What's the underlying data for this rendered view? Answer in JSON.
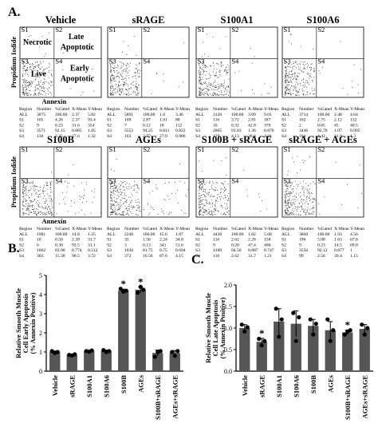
{
  "panel_letters": {
    "a": "A.",
    "b": "B.",
    "c": "C."
  },
  "scatter": {
    "y_axis_label": "Propidium Iodide",
    "x_axis_label": "Annexin",
    "quadrant_codes": [
      "S1",
      "S2",
      "S3",
      "S4"
    ],
    "quadrant_names": [
      "Necrotic",
      "Late Apoptotic",
      "Live",
      "Early Apoptotic"
    ],
    "table_header": [
      "Region",
      "Number",
      "%Gated",
      "X-Mean",
      "Y-Mean"
    ],
    "panels": [
      {
        "title": "Vehicle",
        "rows": [
          [
            "ALL",
            "3875",
            "100.00",
            "2.37",
            "5.82"
          ],
          [
            "S1",
            "165",
            "4.26",
            "2.37",
            "93.4"
          ],
          [
            "S2",
            "9",
            "0.23",
            "31.6",
            "354"
          ],
          [
            "S3",
            "3571",
            "92.15",
            "0.885",
            "1.05"
          ],
          [
            "S4",
            "130",
            "3.35",
            "27.6",
            "1.32"
          ]
        ]
      },
      {
        "title": "sRAGE",
        "rows": [
          [
            "ALL",
            "5891",
            "100.00",
            "1.6",
            "3.46"
          ],
          [
            "S1",
            "169",
            "2.87",
            "1.61",
            "88"
          ],
          [
            "S2",
            "7",
            "0.12",
            "18",
            "112"
          ],
          [
            "S3",
            "5552",
            "94.25",
            "0.811",
            "0.822"
          ],
          [
            "S4",
            "163",
            "2.77",
            "27.9",
            "0.986"
          ]
        ]
      },
      {
        "title": "S100A1",
        "rows": [
          [
            "ALL",
            "3120",
            "100.00",
            "3.09",
            "9.01"
          ],
          [
            "S1",
            "116",
            "3.72",
            "2.81",
            "187"
          ],
          [
            "S2",
            "10",
            "0.32",
            "42.8",
            "379"
          ],
          [
            "S3",
            "2865",
            "91.83",
            "1.36",
            "0.876"
          ],
          [
            "S4",
            "129",
            "4.13",
            "38.6",
            "1.21"
          ]
        ]
      },
      {
        "title": "S100A6",
        "rows": [
          [
            "ALL",
            "3714",
            "100.00",
            "2.48",
            "4.64"
          ],
          [
            "S1",
            "102",
            "2.75",
            "2.12",
            "132"
          ],
          [
            "S2",
            "2",
            "0.05",
            "45",
            "40.5"
          ],
          [
            "S3",
            "3446",
            "92.78",
            "1.07",
            "0.995"
          ],
          [
            "S4",
            "164",
            "4.42",
            "31.9",
            "1.3"
          ]
        ]
      },
      {
        "title": "S100B",
        "rows": [
          [
            "ALL",
            "1981",
            "100.00",
            "14.8",
            "1.25"
          ],
          [
            "S1",
            "10",
            "0.50",
            "2.39",
            "31.7"
          ],
          [
            "S2",
            "6",
            "0.30",
            "93.5",
            "31.1"
          ],
          [
            "S3",
            "1662",
            "83.90",
            "0.774",
            "0.512"
          ],
          [
            "S4",
            "303",
            "15.30",
            "90.5",
            "3.72"
          ]
        ]
      },
      {
        "title": "AGEs",
        "rows": [
          [
            "ALL",
            "2246",
            "100.00",
            "15.6",
            "1.87"
          ],
          [
            "S1",
            "35",
            "1.56",
            "2.24",
            "34.8"
          ],
          [
            "S2",
            "3",
            "0.13",
            "341",
            "51.6"
          ],
          [
            "S3",
            "1836",
            "81.75",
            "0.75",
            "0.694"
          ],
          [
            "S4",
            "372",
            "16.56",
            "87.6",
            "4.15"
          ]
        ]
      },
      {
        "title": "S100B + sRAGE",
        "rows": [
          [
            "ALL",
            "4430",
            "100.00",
            "1.82",
            "5.68"
          ],
          [
            "S1",
            "116",
            "2.62",
            "2.26",
            "158"
          ],
          [
            "S2",
            "9",
            "0.20",
            "47.4",
            "400"
          ],
          [
            "S3",
            "4189",
            "94.56",
            "0.887",
            "0.747"
          ],
          [
            "S4",
            "116",
            "2.62",
            "31.7",
            "1.21"
          ]
        ]
      },
      {
        "title": "sRAGE + AGEs",
        "rows": [
          [
            "ALL",
            "3860",
            "100.00",
            "1.93",
            "4.56"
          ],
          [
            "S1",
            "196",
            "5.08",
            "1.63",
            "67.8"
          ],
          [
            "S2",
            "9",
            "0.23",
            "14.5",
            "69.8"
          ],
          [
            "S3",
            "3556",
            "92.12",
            "0.877",
            "1"
          ],
          [
            "S4",
            "99",
            "2.56",
            "39.4",
            "1.15"
          ]
        ]
      }
    ]
  },
  "chart_data": [
    {
      "type": "bar",
      "panel": "B.",
      "ylabel": "Relative Smooth Muscle Cell Early Apoptosis (% Annexin Positive)",
      "ylim": [
        0,
        5
      ],
      "yticks": [
        0,
        1,
        2,
        3,
        4,
        5
      ],
      "categories": [
        "Vehicle",
        "sRAGE",
        "S100A1",
        "S100A6",
        "S100B",
        "AGEs",
        "S100B+sRAGE",
        "AGEs+sRAGE"
      ],
      "values": [
        1.0,
        0.85,
        1.05,
        1.05,
        4.2,
        4.25,
        0.95,
        0.95
      ],
      "errors": [
        0.05,
        0.04,
        0.04,
        0.05,
        0.08,
        0.15,
        0.15,
        0.12
      ],
      "points": [
        [
          1.05,
          0.95,
          1.0
        ],
        [
          0.85,
          0.82,
          0.88
        ],
        [
          1.05,
          1.02,
          1.08
        ],
        [
          1.1,
          1.0,
          1.05
        ],
        [
          4.3,
          4.15,
          4.2
        ],
        [
          4.1,
          4.4,
          4.25
        ],
        [
          0.75,
          1.0,
          1.05
        ],
        [
          1.0,
          0.8,
          1.05
        ]
      ],
      "significance": [
        "",
        "",
        "",
        "",
        "*",
        "*",
        "",
        ""
      ],
      "bar_color": "#555555"
    },
    {
      "type": "bar",
      "panel": "C.",
      "ylabel": "Relative Smooth Muscle Cell Late Apoptosis (% Annexin Positive)",
      "ylim": [
        0,
        2.0
      ],
      "yticks": [
        0.0,
        0.5,
        1.0,
        1.5,
        2.0
      ],
      "categories": [
        "Vehicle",
        "sRAGE",
        "S100A1",
        "S100A6",
        "S100B",
        "AGEs",
        "S100B+sRAGE",
        "AGEs+sRAGE"
      ],
      "values": [
        1.0,
        0.68,
        1.15,
        1.1,
        1.05,
        0.95,
        0.9,
        0.98
      ],
      "errors": [
        0.08,
        0.08,
        0.3,
        0.3,
        0.15,
        0.2,
        0.05,
        0.1
      ],
      "points": [
        [
          1.08,
          0.92,
          1.02
        ],
        [
          0.75,
          0.6,
          0.7
        ],
        [
          1.45,
          0.8,
          1.2
        ],
        [
          1.35,
          0.7,
          1.25
        ],
        [
          1.2,
          0.85,
          1.1
        ],
        [
          1.2,
          0.7,
          0.95
        ],
        [
          0.85,
          0.92,
          0.95
        ],
        [
          1.08,
          0.85,
          1.0
        ]
      ],
      "significance": [
        "",
        "*",
        "",
        "",
        "",
        "",
        "*",
        ""
      ],
      "bar_color": "#555555"
    }
  ]
}
